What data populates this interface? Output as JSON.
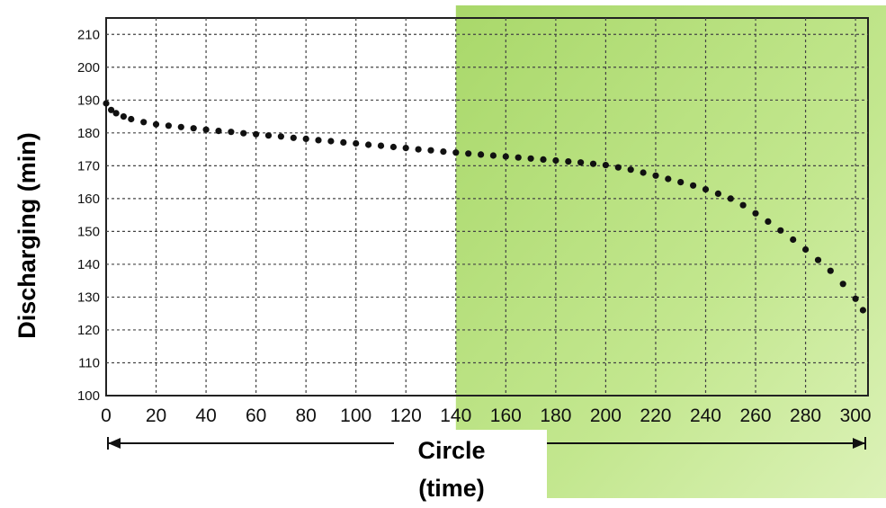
{
  "chart_data": {
    "type": "scatter",
    "ylabel": "Discharging (min)",
    "xlabel_line1": "Circle",
    "xlabel_line2": "(time)",
    "xlim": [
      0,
      305
    ],
    "ylim": [
      100,
      215
    ],
    "x_ticks": [
      0,
      20,
      40,
      60,
      80,
      100,
      120,
      140,
      160,
      180,
      200,
      220,
      240,
      260,
      280,
      300
    ],
    "y_ticks": [
      100,
      110,
      120,
      130,
      140,
      150,
      160,
      170,
      180,
      190,
      200,
      210
    ],
    "grid": true,
    "highlight_region_start_x": 140,
    "colors": {
      "highlight": "#b8e07a",
      "points": "#111111",
      "grid": "#444444"
    },
    "points": [
      [
        0,
        189
      ],
      [
        2,
        187
      ],
      [
        4,
        186
      ],
      [
        7,
        185
      ],
      [
        10,
        184.2
      ],
      [
        15,
        183.3
      ],
      [
        20,
        182.6
      ],
      [
        25,
        182.2
      ],
      [
        30,
        181.8
      ],
      [
        35,
        181.4
      ],
      [
        40,
        181
      ],
      [
        45,
        180.6
      ],
      [
        50,
        180.3
      ],
      [
        55,
        179.9
      ],
      [
        60,
        179.6
      ],
      [
        65,
        179.2
      ],
      [
        70,
        178.9
      ],
      [
        75,
        178.5
      ],
      [
        80,
        178.2
      ],
      [
        85,
        177.8
      ],
      [
        90,
        177.5
      ],
      [
        95,
        177.1
      ],
      [
        100,
        176.8
      ],
      [
        105,
        176.4
      ],
      [
        110,
        176.1
      ],
      [
        115,
        175.7
      ],
      [
        120,
        175.4
      ],
      [
        125,
        175
      ],
      [
        130,
        174.7
      ],
      [
        135,
        174.3
      ],
      [
        140,
        174
      ],
      [
        145,
        173.7
      ],
      [
        150,
        173.4
      ],
      [
        155,
        173.1
      ],
      [
        160,
        172.8
      ],
      [
        165,
        172.5
      ],
      [
        170,
        172.2
      ],
      [
        175,
        171.9
      ],
      [
        180,
        171.6
      ],
      [
        185,
        171.3
      ],
      [
        190,
        171
      ],
      [
        195,
        170.6
      ],
      [
        200,
        170.2
      ],
      [
        205,
        169.5
      ],
      [
        210,
        168.8
      ],
      [
        215,
        167.9
      ],
      [
        220,
        167
      ],
      [
        225,
        166
      ],
      [
        230,
        165
      ],
      [
        235,
        164
      ],
      [
        240,
        162.8
      ],
      [
        245,
        161.5
      ],
      [
        250,
        160
      ],
      [
        255,
        158
      ],
      [
        260,
        155.5
      ],
      [
        265,
        153
      ],
      [
        270,
        150.3
      ],
      [
        275,
        147.5
      ],
      [
        280,
        144.5
      ],
      [
        285,
        141.3
      ],
      [
        290,
        138
      ],
      [
        295,
        134
      ],
      [
        300,
        129.5
      ],
      [
        303,
        126
      ]
    ]
  }
}
